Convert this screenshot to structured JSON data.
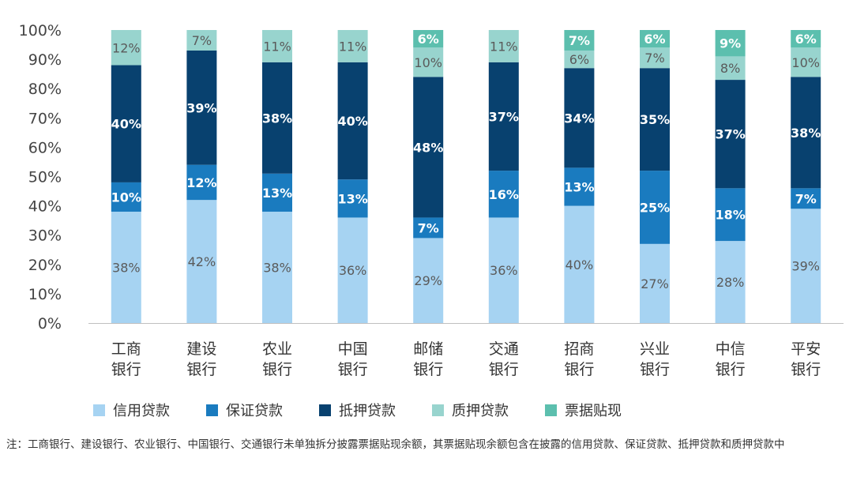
{
  "chart_data": {
    "type": "bar",
    "stacked": true,
    "categories": [
      "工商\n银行",
      "建设\n银行",
      "农业\n银行",
      "中国\n银行",
      "邮储\n银行",
      "交通\n银行",
      "招商\n银行",
      "兴业\n银行",
      "中信\n银行",
      "平安\n银行"
    ],
    "category_lines": [
      [
        "工商",
        "银行"
      ],
      [
        "建设",
        "银行"
      ],
      [
        "农业",
        "银行"
      ],
      [
        "中国",
        "银行"
      ],
      [
        "邮储",
        "银行"
      ],
      [
        "交通",
        "银行"
      ],
      [
        "招商",
        "银行"
      ],
      [
        "兴业",
        "银行"
      ],
      [
        "中信",
        "银行"
      ],
      [
        "平安",
        "银行"
      ]
    ],
    "series": [
      {
        "name": "信用贷款",
        "color": "#a6d3f2",
        "label_color": "#5a5a5a",
        "values": [
          38,
          42,
          38,
          36,
          29,
          36,
          40,
          27,
          28,
          39
        ]
      },
      {
        "name": "保证贷款",
        "color": "#1a7bbf",
        "label_color": "#ffffff",
        "values": [
          10,
          12,
          13,
          13,
          7,
          16,
          13,
          25,
          18,
          7
        ]
      },
      {
        "name": "抵押贷款",
        "color": "#08416f",
        "label_color": "#ffffff",
        "values": [
          40,
          39,
          38,
          40,
          48,
          37,
          34,
          35,
          37,
          38
        ]
      },
      {
        "name": "质押贷款",
        "color": "#98d4ce",
        "label_color": "#5a5a5a",
        "values": [
          12,
          7,
          11,
          11,
          10,
          11,
          6,
          7,
          8,
          10
        ]
      },
      {
        "name": "票据贴现",
        "color": "#5cbfae",
        "label_color": "#ffffff",
        "values": [
          0,
          0,
          0,
          0,
          6,
          0,
          7,
          6,
          9,
          6
        ]
      }
    ],
    "yticks": [
      "0%",
      "10%",
      "20%",
      "30%",
      "40%",
      "50%",
      "60%",
      "70%",
      "80%",
      "90%",
      "100%"
    ],
    "ylim": [
      0,
      100
    ],
    "legend_position": "bottom"
  },
  "note": "注：工商银行、建设银行、农业银行、中国银行、交通银行未单独拆分披露票据贴现余额，其票据贴现余额包含在披露的信用贷款、保证贷款、抵押贷款和质押贷款中"
}
